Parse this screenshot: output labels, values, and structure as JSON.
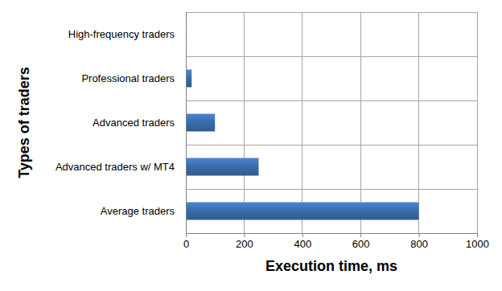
{
  "chart_data": {
    "type": "bar",
    "orientation": "horizontal",
    "x_label": "Execution time, ms",
    "y_label": "Types of traders",
    "categories": [
      "High-frequency traders",
      "Professional traders",
      "Advanced traders",
      "Advanced traders w/ MT4",
      "Average traders"
    ],
    "values": [
      3,
      20,
      100,
      250,
      800
    ],
    "color": "#3a6dab",
    "xlim": [
      0,
      1000
    ],
    "xticks": [
      0,
      200,
      400,
      600,
      800,
      1000
    ],
    "grid": true
  }
}
